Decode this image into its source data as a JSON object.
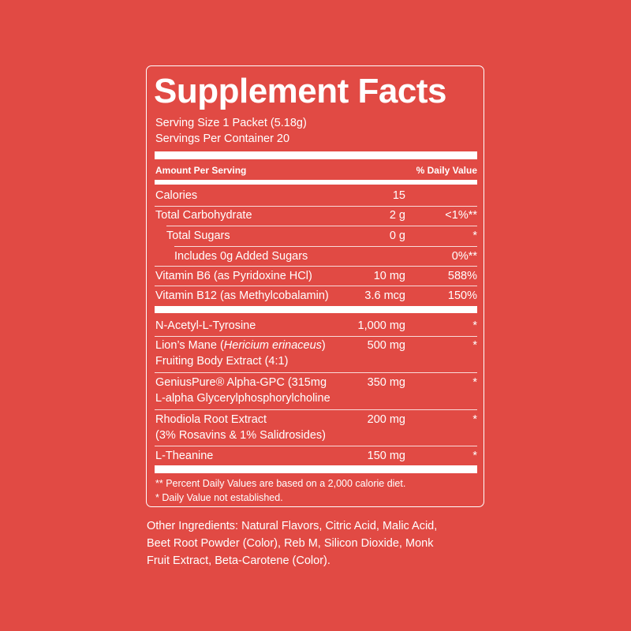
{
  "header": {
    "title": "Supplement Facts",
    "serving_size": "Serving Size 1 Packet (5.18g)",
    "servings_per_container": "Servings Per Container 20"
  },
  "table": {
    "column_headers": [
      "Amount Per Serving",
      "% Daily Value"
    ],
    "nutrients": [
      {
        "name_lines": [
          [
            "Calories"
          ]
        ],
        "amount": "15"
      },
      {
        "name_lines": [
          [
            "Total Carbohydrate"
          ]
        ],
        "amount": "2 g",
        "daily_value": "<1%**"
      },
      {
        "name_lines": [
          [
            "Total Sugars"
          ]
        ],
        "amount": "0 g",
        "daily_value": "*"
      },
      {
        "name_lines": [
          [
            "Includes 0g Added Sugars"
          ]
        ],
        "daily_value": "0%**"
      },
      {
        "name_lines": [
          [
            "Vitamin B6 (as Pyridoxine HCl)"
          ]
        ],
        "amount": "10 mg",
        "daily_value": "588%"
      },
      {
        "name_lines": [
          [
            "Vitamin B12 (as Methylcobalamin)"
          ]
        ],
        "amount": "3.6 mcg",
        "daily_value": "150%"
      }
    ],
    "ingredients": [
      {
        "name_lines": [
          [
            "N-Acetyl-L-Tyrosine"
          ]
        ],
        "amount": "1,000 mg",
        "daily_value": "*"
      },
      {
        "name_lines": [
          [
            "Lion’s Mane (",
            {
              "italic": "Hericium erinaceus"
            },
            ")"
          ],
          [
            "Fruiting Body Extract (4:1)"
          ]
        ],
        "amount": "500 mg",
        "daily_value": "*"
      },
      {
        "name_lines": [
          [
            "GeniusPure® Alpha-GPC (315mg"
          ],
          [
            "L-alpha Glycerylphosphorylcholine"
          ]
        ],
        "amount": "350 mg",
        "daily_value": "*"
      },
      {
        "name_lines": [
          [
            "Rhodiola Root Extract"
          ],
          [
            "(3% Rosavins & 1% Salidrosides)"
          ]
        ],
        "amount": "200 mg",
        "daily_value": "*"
      },
      {
        "name_lines": [
          [
            "L-Theanine"
          ]
        ],
        "amount": "150 mg",
        "daily_value": "*"
      }
    ]
  },
  "footnotes": [
    "** Percent Daily Values are based on a 2,000 calorie diet.",
    "* Daily Value not established."
  ],
  "other_ingredients": [
    "Other Ingredients: Natural Flavors, Citric Acid, Malic Acid,",
    "Beet Root Powder (Color), Reb M, Silicon Dioxide, Monk",
    "Fruit Extract, Beta-Carotene (Color)."
  ]
}
